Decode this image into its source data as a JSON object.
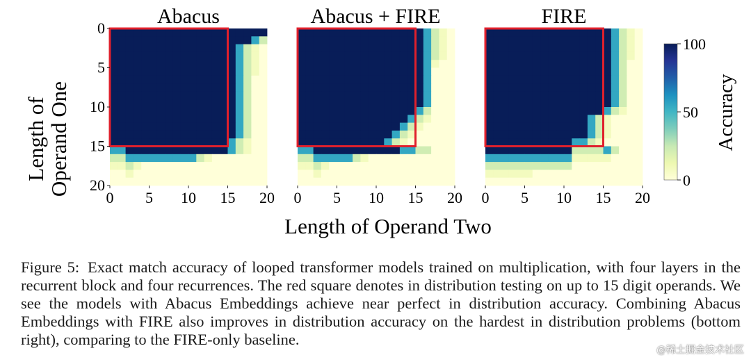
{
  "chart_data": {
    "type": "heatmap",
    "panels": [
      {
        "title": "Abacus",
        "fill_bottom": [
          15,
          15,
          16,
          16,
          16,
          16,
          16,
          16,
          16,
          16,
          16,
          16,
          16,
          16,
          16,
          16,
          15,
          14,
          3,
          1,
          1
        ],
        "fill_right": [
          20,
          18,
          16,
          16,
          16,
          16,
          16,
          16,
          16,
          16,
          16,
          16,
          16,
          16,
          15,
          15,
          10,
          1,
          0,
          0,
          0
        ]
      },
      {
        "title": "Abacus + FIRE",
        "fill_bottom": [
          15,
          15,
          16,
          16,
          16,
          16,
          16,
          16,
          16,
          16,
          16,
          16,
          16,
          15,
          15,
          14,
          14,
          2,
          1,
          0,
          0
        ],
        "fill_right": [
          16,
          16,
          16,
          16,
          16,
          16,
          16,
          16,
          16,
          16,
          15,
          14,
          13,
          12,
          11,
          15,
          6,
          1,
          0,
          0,
          0
        ]
      },
      {
        "title": "FIRE",
        "fill_bottom": [
          16,
          16,
          16,
          16,
          16,
          16,
          16,
          16,
          16,
          16,
          16,
          14,
          14,
          14,
          14,
          15,
          14,
          8,
          1,
          0,
          0
        ],
        "fill_right": [
          16,
          16,
          16,
          16,
          16,
          16,
          16,
          16,
          16,
          16,
          15,
          13,
          13,
          13,
          12,
          15,
          13,
          10,
          3,
          0,
          0
        ]
      }
    ],
    "xlabel": "Length of Operand Two",
    "ylabel": "Length of Operand One",
    "x_ticks": [
      "0",
      "5",
      "10",
      "15",
      "20"
    ],
    "y_ticks": [
      "0",
      "5",
      "10",
      "15",
      "20"
    ],
    "xlim": [
      0,
      20
    ],
    "ylim": [
      0,
      20
    ],
    "in_distribution_box": [
      0,
      15
    ],
    "box_color": "#e0202c",
    "colorbar": {
      "label": "Accuracy",
      "ticks": [
        "0",
        "50",
        "100"
      ],
      "range": [
        0,
        100
      ],
      "colormap": "YlGnBu",
      "colors": [
        "#ffffd9",
        "#edf8b1",
        "#c7e9b4",
        "#7fcdbb",
        "#41b6c4",
        "#1d91c0",
        "#225ea8",
        "#253494",
        "#081d58"
      ]
    }
  },
  "caption": {
    "label": "Figure 5:",
    "text": "Exact match accuracy of looped transformer models trained on multiplication, with four layers in the recurrent block and four recurrences. The red square denotes in distribution testing on up to 15 digit operands. We see the models with Abacus Embeddings achieve near perfect in distribution accuracy. Combining Abacus Embeddings with FIRE also improves in distribution accuracy on the hardest in distribution problems (bottom right), comparing to the FIRE-only baseline."
  },
  "watermark": "@稀土掘金技术社区"
}
